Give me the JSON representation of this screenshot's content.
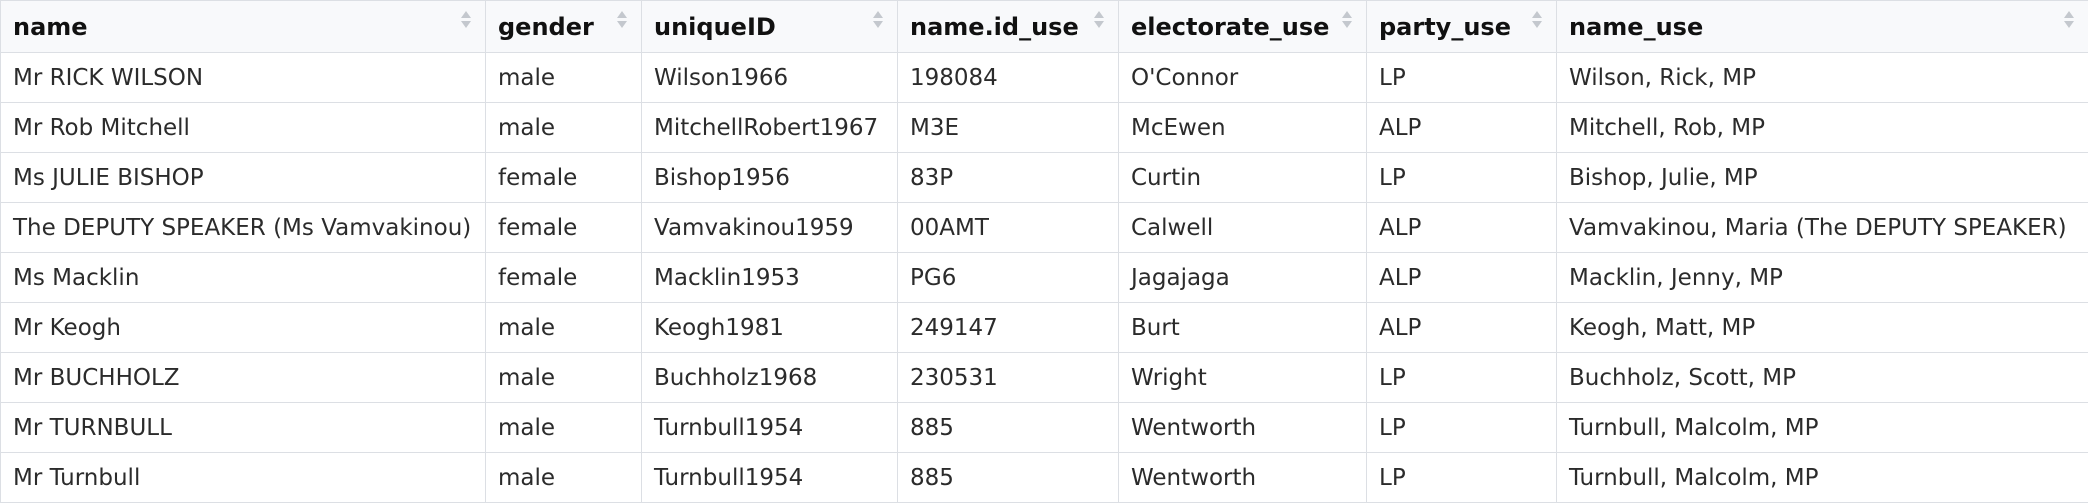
{
  "table": {
    "columns": [
      {
        "key": "name",
        "label": "name"
      },
      {
        "key": "gender",
        "label": "gender"
      },
      {
        "key": "uniqueID",
        "label": "uniqueID"
      },
      {
        "key": "name_id_use",
        "label": "name.id_use"
      },
      {
        "key": "electorate_use",
        "label": "electorate_use"
      },
      {
        "key": "party_use",
        "label": "party_use"
      },
      {
        "key": "name_use",
        "label": "name_use"
      }
    ],
    "rows": [
      [
        "Mr RICK WILSON",
        "male",
        "Wilson1966",
        "198084",
        "O'Connor",
        "LP",
        "Wilson, Rick, MP"
      ],
      [
        "Mr Rob Mitchell",
        "male",
        "MitchellRobert1967",
        "M3E",
        "McEwen",
        "ALP",
        "Mitchell, Rob, MP"
      ],
      [
        "Ms JULIE BISHOP",
        "female",
        "Bishop1956",
        "83P",
        "Curtin",
        "LP",
        "Bishop, Julie, MP"
      ],
      [
        "The DEPUTY SPEAKER (Ms Vamvakinou)",
        "female",
        "Vamvakinou1959",
        "00AMT",
        "Calwell",
        "ALP",
        "Vamvakinou, Maria (The DEPUTY SPEAKER)"
      ],
      [
        "Ms Macklin",
        "female",
        "Macklin1953",
        "PG6",
        "Jagajaga",
        "ALP",
        "Macklin, Jenny, MP"
      ],
      [
        "Mr Keogh",
        "male",
        "Keogh1981",
        "249147",
        "Burt",
        "ALP",
        "Keogh, Matt, MP"
      ],
      [
        "Mr BUCHHOLZ",
        "male",
        "Buchholz1968",
        "230531",
        "Wright",
        "LP",
        "Buchholz, Scott, MP"
      ],
      [
        "Mr TURNBULL",
        "male",
        "Turnbull1954",
        "885",
        "Wentworth",
        "LP",
        "Turnbull, Malcolm, MP"
      ],
      [
        "Mr Turnbull",
        "male",
        "Turnbull1954",
        "885",
        "Wentworth",
        "LP",
        "Turnbull, Malcolm, MP"
      ]
    ]
  },
  "icons": {
    "sort": "sort-both-icon"
  },
  "colors": {
    "header_bg": "#f8f9fb",
    "border": "#dcdfe4",
    "sort_icon": "#c4c8ce"
  }
}
